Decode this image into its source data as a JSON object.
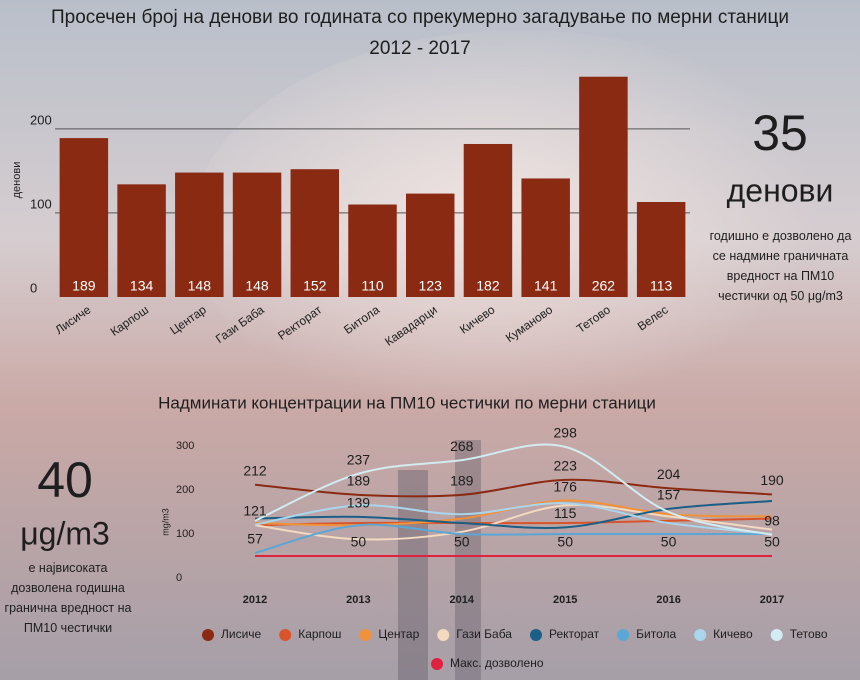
{
  "chart_data": [
    {
      "type": "bar",
      "title": "Просечен број на денови во годината со прекумерно загадување по мерни станици",
      "subtitle": "2012 - 2017",
      "ylabel": "денови",
      "categories": [
        "Лисиче",
        "Карпош",
        "Центар",
        "Гази Баба",
        "Ректорат",
        "Битола",
        "Кавадарци",
        "Кичево",
        "Куманово",
        "Тетово",
        "Велес"
      ],
      "values": [
        189,
        134,
        148,
        148,
        152,
        110,
        123,
        182,
        141,
        262,
        113
      ],
      "color": "#8b2a13",
      "ylim": [
        0,
        270
      ],
      "yticks": [
        0,
        100,
        200
      ],
      "grid": true,
      "annotations": [
        "35",
        "денови",
        "годишно е дозволено да се надмине граничната вредност на ПМ10 честички од 50 μg/m3"
      ]
    },
    {
      "type": "line",
      "title": "Надминати концентрации на ПМ10 честички по мерни станици",
      "ylabel": "mg/m3",
      "categories": [
        "2012",
        "2013",
        "2014",
        "2015",
        "2016",
        "2017"
      ],
      "ylim": [
        0,
        300
      ],
      "yticks": [
        0,
        100,
        200,
        300
      ],
      "grid": false,
      "series": [
        {
          "name": "Лисиче",
          "color": "#8b2a13",
          "values": [
            212,
            189,
            189,
            223,
            204,
            190
          ],
          "value_labels": [
            "212",
            "189",
            "189",
            "223",
            "204",
            "190"
          ]
        },
        {
          "name": "Карпош",
          "color": "#d9542a",
          "values": [
            120,
            125,
            125,
            125,
            130,
            135
          ]
        },
        {
          "name": "Центар",
          "color": "#f0923a",
          "values": [
            125,
            120,
            135,
            176,
            145,
            140
          ],
          "value_labels": [
            null,
            null,
            null,
            "176",
            null,
            null
          ]
        },
        {
          "name": "Гази Баба",
          "color": "#f3d9bf",
          "values": [
            120,
            88,
            105,
            165,
            140,
            110
          ]
        },
        {
          "name": "Ректорат",
          "color": "#1b5f86",
          "values": [
            135,
            139,
            125,
            115,
            157,
            175
          ],
          "value_labels": [
            null,
            "139",
            null,
            "115",
            "157",
            null
          ]
        },
        {
          "name": "Битола",
          "color": "#5aa7d6",
          "values": [
            57,
            120,
            100,
            100,
            100,
            100
          ],
          "value_labels": [
            "57",
            null,
            null,
            null,
            null,
            null
          ]
        },
        {
          "name": "Кичево",
          "color": "#a9d6ec",
          "values": [
            121,
            165,
            145,
            170,
            125,
            100
          ],
          "value_labels": [
            "121",
            null,
            null,
            null,
            null,
            null
          ]
        },
        {
          "name": "Тетово",
          "color": "#d2ecf2",
          "values": [
            130,
            237,
            268,
            298,
            150,
            98
          ],
          "value_labels": [
            null,
            "237",
            "268",
            "298",
            null,
            "98"
          ]
        },
        {
          "name": "Макс. дозволено",
          "color": "#e0213f",
          "values": [
            50,
            50,
            50,
            50,
            50,
            50
          ],
          "value_labels": [
            null,
            "50",
            "50",
            "50",
            "50",
            "50"
          ]
        }
      ],
      "annotations": [
        "40",
        "μg/m3",
        "е највисоката дозволена годишна гранична вредност на ПМ10 честички"
      ]
    }
  ]
}
